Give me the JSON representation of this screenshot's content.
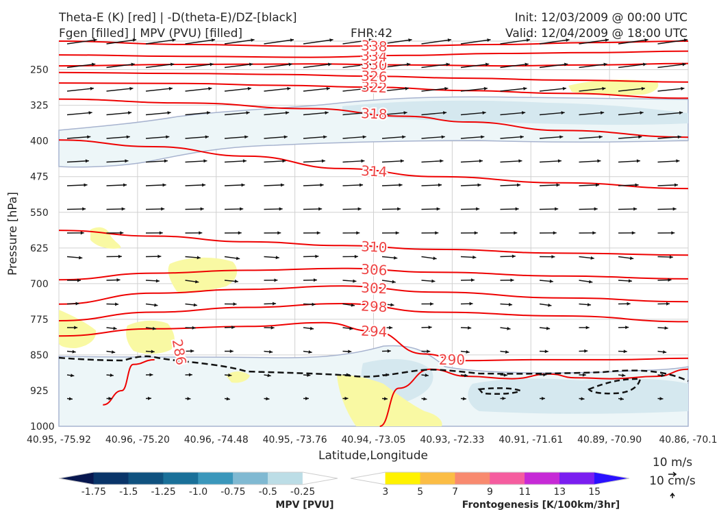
{
  "header": {
    "title_line1": "Theta-E (K) [red] | -D(theta-E)/DZ-[black]",
    "title_line2": "Fgen [filled] | MPV (PVU) [filled]",
    "fhr": "FHR:42",
    "init": "Init: 12/03/2009 @ 00:00 UTC",
    "valid": "Valid: 12/04/2009 @ 18:00 UTC"
  },
  "chart_data": {
    "type": "cross-section",
    "xlabel": "Latitude,Longitude",
    "ylabel": "Pressure [hPa]",
    "x_ticks": [
      "40.95, -75.92",
      "40.96, -75.20",
      "40.96, -74.48",
      "40.95, -73.76",
      "40.94, -73.05",
      "40.93, -72.33",
      "40.91, -71.61",
      "40.89, -70.90",
      "40.86, -70.1"
    ],
    "y_ticks": [
      250,
      325,
      400,
      475,
      550,
      625,
      700,
      775,
      850,
      925,
      1000
    ],
    "ylim": [
      1000,
      190
    ],
    "grid": true,
    "theta_e_contours": [
      {
        "level": 286,
        "label": "286",
        "points": [
          [
            0.07,
            955
          ],
          [
            0.1,
            925
          ],
          [
            0.118,
            870
          ],
          [
            0.152,
            860
          ]
        ]
      },
      {
        "level": 290,
        "label": "290",
        "points": [
          [
            0.51,
            1000
          ],
          [
            0.54,
            920
          ],
          [
            0.59,
            880
          ],
          [
            0.65,
            895
          ],
          [
            0.72,
            900
          ],
          [
            0.78,
            890
          ],
          [
            0.82,
            898
          ],
          [
            0.88,
            900
          ],
          [
            0.95,
            895
          ],
          [
            1.0,
            880
          ]
        ]
      },
      {
        "level": 294,
        "label": "294",
        "points": [
          [
            0.0,
            810
          ],
          [
            0.15,
            795
          ],
          [
            0.3,
            790
          ],
          [
            0.42,
            782
          ],
          [
            0.5,
            800
          ],
          [
            0.58,
            848
          ],
          [
            0.64,
            862
          ],
          [
            0.75,
            860
          ],
          [
            0.88,
            860
          ],
          [
            1.0,
            857
          ]
        ]
      },
      {
        "level": 298,
        "label": "298",
        "points": [
          [
            0.0,
            778
          ],
          [
            0.15,
            760
          ],
          [
            0.3,
            750
          ],
          [
            0.45,
            742
          ],
          [
            0.6,
            760
          ],
          [
            0.8,
            768
          ],
          [
            1.0,
            780
          ]
        ]
      },
      {
        "level": 302,
        "label": "302",
        "points": [
          [
            0.0,
            743
          ],
          [
            0.15,
            720
          ],
          [
            0.3,
            712
          ],
          [
            0.45,
            705
          ],
          [
            0.6,
            718
          ],
          [
            0.8,
            730
          ],
          [
            1.0,
            738
          ]
        ]
      },
      {
        "level": 306,
        "label": "306",
        "points": [
          [
            0.0,
            692
          ],
          [
            0.15,
            678
          ],
          [
            0.3,
            672
          ],
          [
            0.45,
            668
          ],
          [
            0.6,
            676
          ],
          [
            0.8,
            684
          ],
          [
            1.0,
            690
          ]
        ]
      },
      {
        "level": 310,
        "label": "310",
        "points": [
          [
            0.0,
            588
          ],
          [
            0.15,
            600
          ],
          [
            0.3,
            612
          ],
          [
            0.45,
            620
          ],
          [
            0.6,
            628
          ],
          [
            0.8,
            636
          ],
          [
            1.0,
            640
          ]
        ]
      },
      {
        "level": 314,
        "label": "314",
        "points": [
          [
            0.0,
            398
          ],
          [
            0.15,
            412
          ],
          [
            0.3,
            432
          ],
          [
            0.45,
            458
          ],
          [
            0.6,
            475
          ],
          [
            0.8,
            488
          ],
          [
            1.0,
            500
          ]
        ]
      },
      {
        "level": 318,
        "label": "318",
        "points": [
          [
            0.0,
            312
          ],
          [
            0.2,
            320
          ],
          [
            0.4,
            332
          ],
          [
            0.55,
            348
          ],
          [
            0.65,
            360
          ],
          [
            0.8,
            378
          ],
          [
            1.0,
            392
          ]
        ]
      },
      {
        "level": 322,
        "label": "322",
        "points": [
          [
            0.0,
            278
          ],
          [
            0.2,
            279
          ],
          [
            0.35,
            283
          ],
          [
            0.5,
            287
          ],
          [
            0.65,
            294
          ],
          [
            0.8,
            300
          ],
          [
            1.0,
            310
          ]
        ]
      },
      {
        "level": 326,
        "label": "326",
        "points": [
          [
            0.0,
            256
          ],
          [
            0.2,
            258
          ],
          [
            0.35,
            260
          ],
          [
            0.5,
            264
          ],
          [
            0.65,
            268
          ],
          [
            0.8,
            272
          ],
          [
            1.0,
            276
          ]
        ]
      },
      {
        "level": 330,
        "label": "330",
        "points": [
          [
            0.0,
            242
          ],
          [
            0.2,
            239
          ],
          [
            0.4,
            238
          ],
          [
            0.55,
            240
          ],
          [
            0.7,
            242
          ],
          [
            0.85,
            240
          ],
          [
            1.0,
            237
          ]
        ]
      },
      {
        "level": 334,
        "label": "334",
        "points": [
          [
            0.0,
            219
          ],
          [
            0.2,
            222
          ],
          [
            0.4,
            224
          ],
          [
            0.55,
            220
          ],
          [
            0.7,
            216
          ],
          [
            0.85,
            214
          ],
          [
            1.0,
            211
          ]
        ]
      },
      {
        "level": 338,
        "label": "338",
        "points": [
          [
            0.0,
            190
          ],
          [
            0.2,
            197
          ],
          [
            0.4,
            201
          ],
          [
            0.55,
            200
          ],
          [
            0.7,
            197
          ],
          [
            0.85,
            193
          ],
          [
            1.0,
            190
          ]
        ]
      }
    ],
    "colorbar_mpv": {
      "label": "MPV [PVU]",
      "ticks": [
        "-1.75",
        "-1.5",
        "-1.25",
        "-1.0",
        "-0.75",
        "-0.5",
        "-0.25"
      ],
      "colors": [
        "#08174f",
        "#0a3569",
        "#10527f",
        "#1a7099",
        "#3b97bb",
        "#80b9d2",
        "#bcdde6",
        "#ffffff"
      ]
    },
    "colorbar_fgen": {
      "label": "Frontogenesis [K/100km/3hr]",
      "ticks": [
        "3",
        "5",
        "7",
        "9",
        "11",
        "13",
        "15"
      ],
      "colors": [
        "#ffffff",
        "#fff200",
        "#fbbd45",
        "#f88a6f",
        "#f55d9f",
        "#c62ad6",
        "#7a1ef0",
        "#2a11ff"
      ]
    },
    "wind_scale": {
      "horizontal": "10 m/s",
      "vertical": "10 cm/s"
    }
  }
}
